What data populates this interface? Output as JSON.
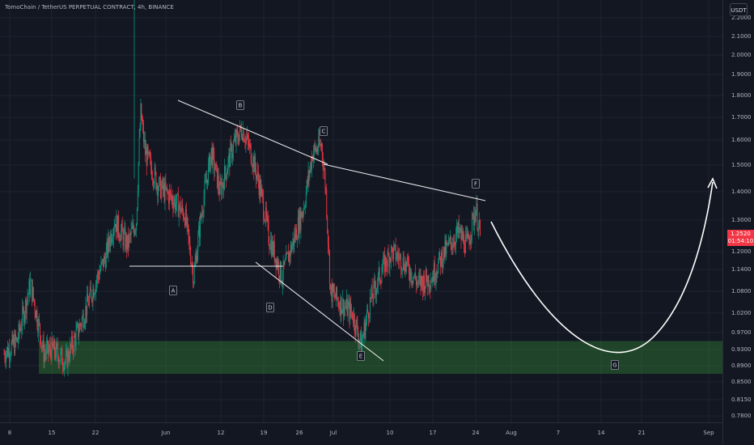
{
  "header": {
    "symbol_title": "TomoChain / TetherUS PERPETUAL CONTRACT, 4h, BINANCE",
    "currency_button": "USDT"
  },
  "last_price": {
    "value": "1.2520",
    "countdown": "01:54:10"
  },
  "colors": {
    "background": "#131722",
    "up_candle": "#089981",
    "down_candle": "#f23645",
    "support_zone": "#2e7d32",
    "drawing_lines": "#ffffff"
  },
  "chart_data": {
    "type": "candlestick",
    "title": "TomoChain / TetherUS PERPETUAL CONTRACT, 4h, BINANCE",
    "xlabel": "",
    "ylabel": "",
    "ylim": [
      0.76,
      2.23
    ],
    "y_ticks": [
      "2.2000",
      "2.1000",
      "2.0000",
      "1.9000",
      "1.8000",
      "1.7000",
      "1.6000",
      "1.5000",
      "1.4000",
      "1.3000",
      "1.2000",
      "1.1400",
      "1.0800",
      "1.0200",
      "0.9700",
      "0.9300",
      "0.8900",
      "0.8500",
      "0.8150",
      "0.7800"
    ],
    "x_ticks": [
      "8",
      "15",
      "22",
      "Jun",
      "12",
      "19",
      "26",
      "Jul",
      "10",
      "17",
      "24",
      "Aug",
      "7",
      "14",
      "21",
      "Sep"
    ],
    "wave_points": [
      {
        "label": "A",
        "price": 1.08
      },
      {
        "label": "B",
        "price": 1.76
      },
      {
        "label": "C",
        "price": 1.64
      },
      {
        "label": "D",
        "price": 1.06
      },
      {
        "label": "E",
        "price": 0.93
      },
      {
        "label": "F",
        "price": 1.37
      },
      {
        "label": "G",
        "price": 0.9
      }
    ],
    "support_zone": {
      "low": 0.87,
      "high": 0.95
    },
    "price_anchors": [
      {
        "day": 0,
        "price": 0.92
      },
      {
        "day": 3,
        "price": 0.95
      },
      {
        "day": 6,
        "price": 1.1
      },
      {
        "day": 9,
        "price": 0.92
      },
      {
        "day": 11,
        "price": 0.93
      },
      {
        "day": 14,
        "price": 0.9
      },
      {
        "day": 17,
        "price": 0.98
      },
      {
        "day": 20,
        "price": 1.08
      },
      {
        "day": 23,
        "price": 1.18
      },
      {
        "day": 25,
        "price": 1.3
      },
      {
        "day": 28,
        "price": 1.22
      },
      {
        "day": 30,
        "price": 1.3
      },
      {
        "day": 31,
        "price": 1.72
      },
      {
        "day": 32,
        "price": 1.55
      },
      {
        "day": 35,
        "price": 1.42
      },
      {
        "day": 38,
        "price": 1.38
      },
      {
        "day": 41,
        "price": 1.32
      },
      {
        "day": 43,
        "price": 1.12
      },
      {
        "day": 45,
        "price": 1.35
      },
      {
        "day": 47,
        "price": 1.55
      },
      {
        "day": 49,
        "price": 1.4
      },
      {
        "day": 52,
        "price": 1.58
      },
      {
        "day": 54,
        "price": 1.65
      },
      {
        "day": 56,
        "price": 1.55
      },
      {
        "day": 58,
        "price": 1.42
      },
      {
        "day": 60,
        "price": 1.25
      },
      {
        "day": 63,
        "price": 1.12
      },
      {
        "day": 66,
        "price": 1.25
      },
      {
        "day": 68,
        "price": 1.35
      },
      {
        "day": 70,
        "price": 1.55
      },
      {
        "day": 72,
        "price": 1.58
      },
      {
        "day": 73,
        "price": 1.4
      },
      {
        "day": 74,
        "price": 1.08
      },
      {
        "day": 76,
        "price": 1.05
      },
      {
        "day": 79,
        "price": 1.02
      },
      {
        "day": 81,
        "price": 0.94
      },
      {
        "day": 83,
        "price": 1.05
      },
      {
        "day": 86,
        "price": 1.15
      },
      {
        "day": 88,
        "price": 1.2
      },
      {
        "day": 91,
        "price": 1.16
      },
      {
        "day": 94,
        "price": 1.1
      },
      {
        "day": 97,
        "price": 1.12
      },
      {
        "day": 100,
        "price": 1.2
      },
      {
        "day": 103,
        "price": 1.26
      },
      {
        "day": 105,
        "price": 1.22
      },
      {
        "day": 107,
        "price": 1.34
      },
      {
        "day": 108,
        "price": 1.25
      }
    ]
  }
}
